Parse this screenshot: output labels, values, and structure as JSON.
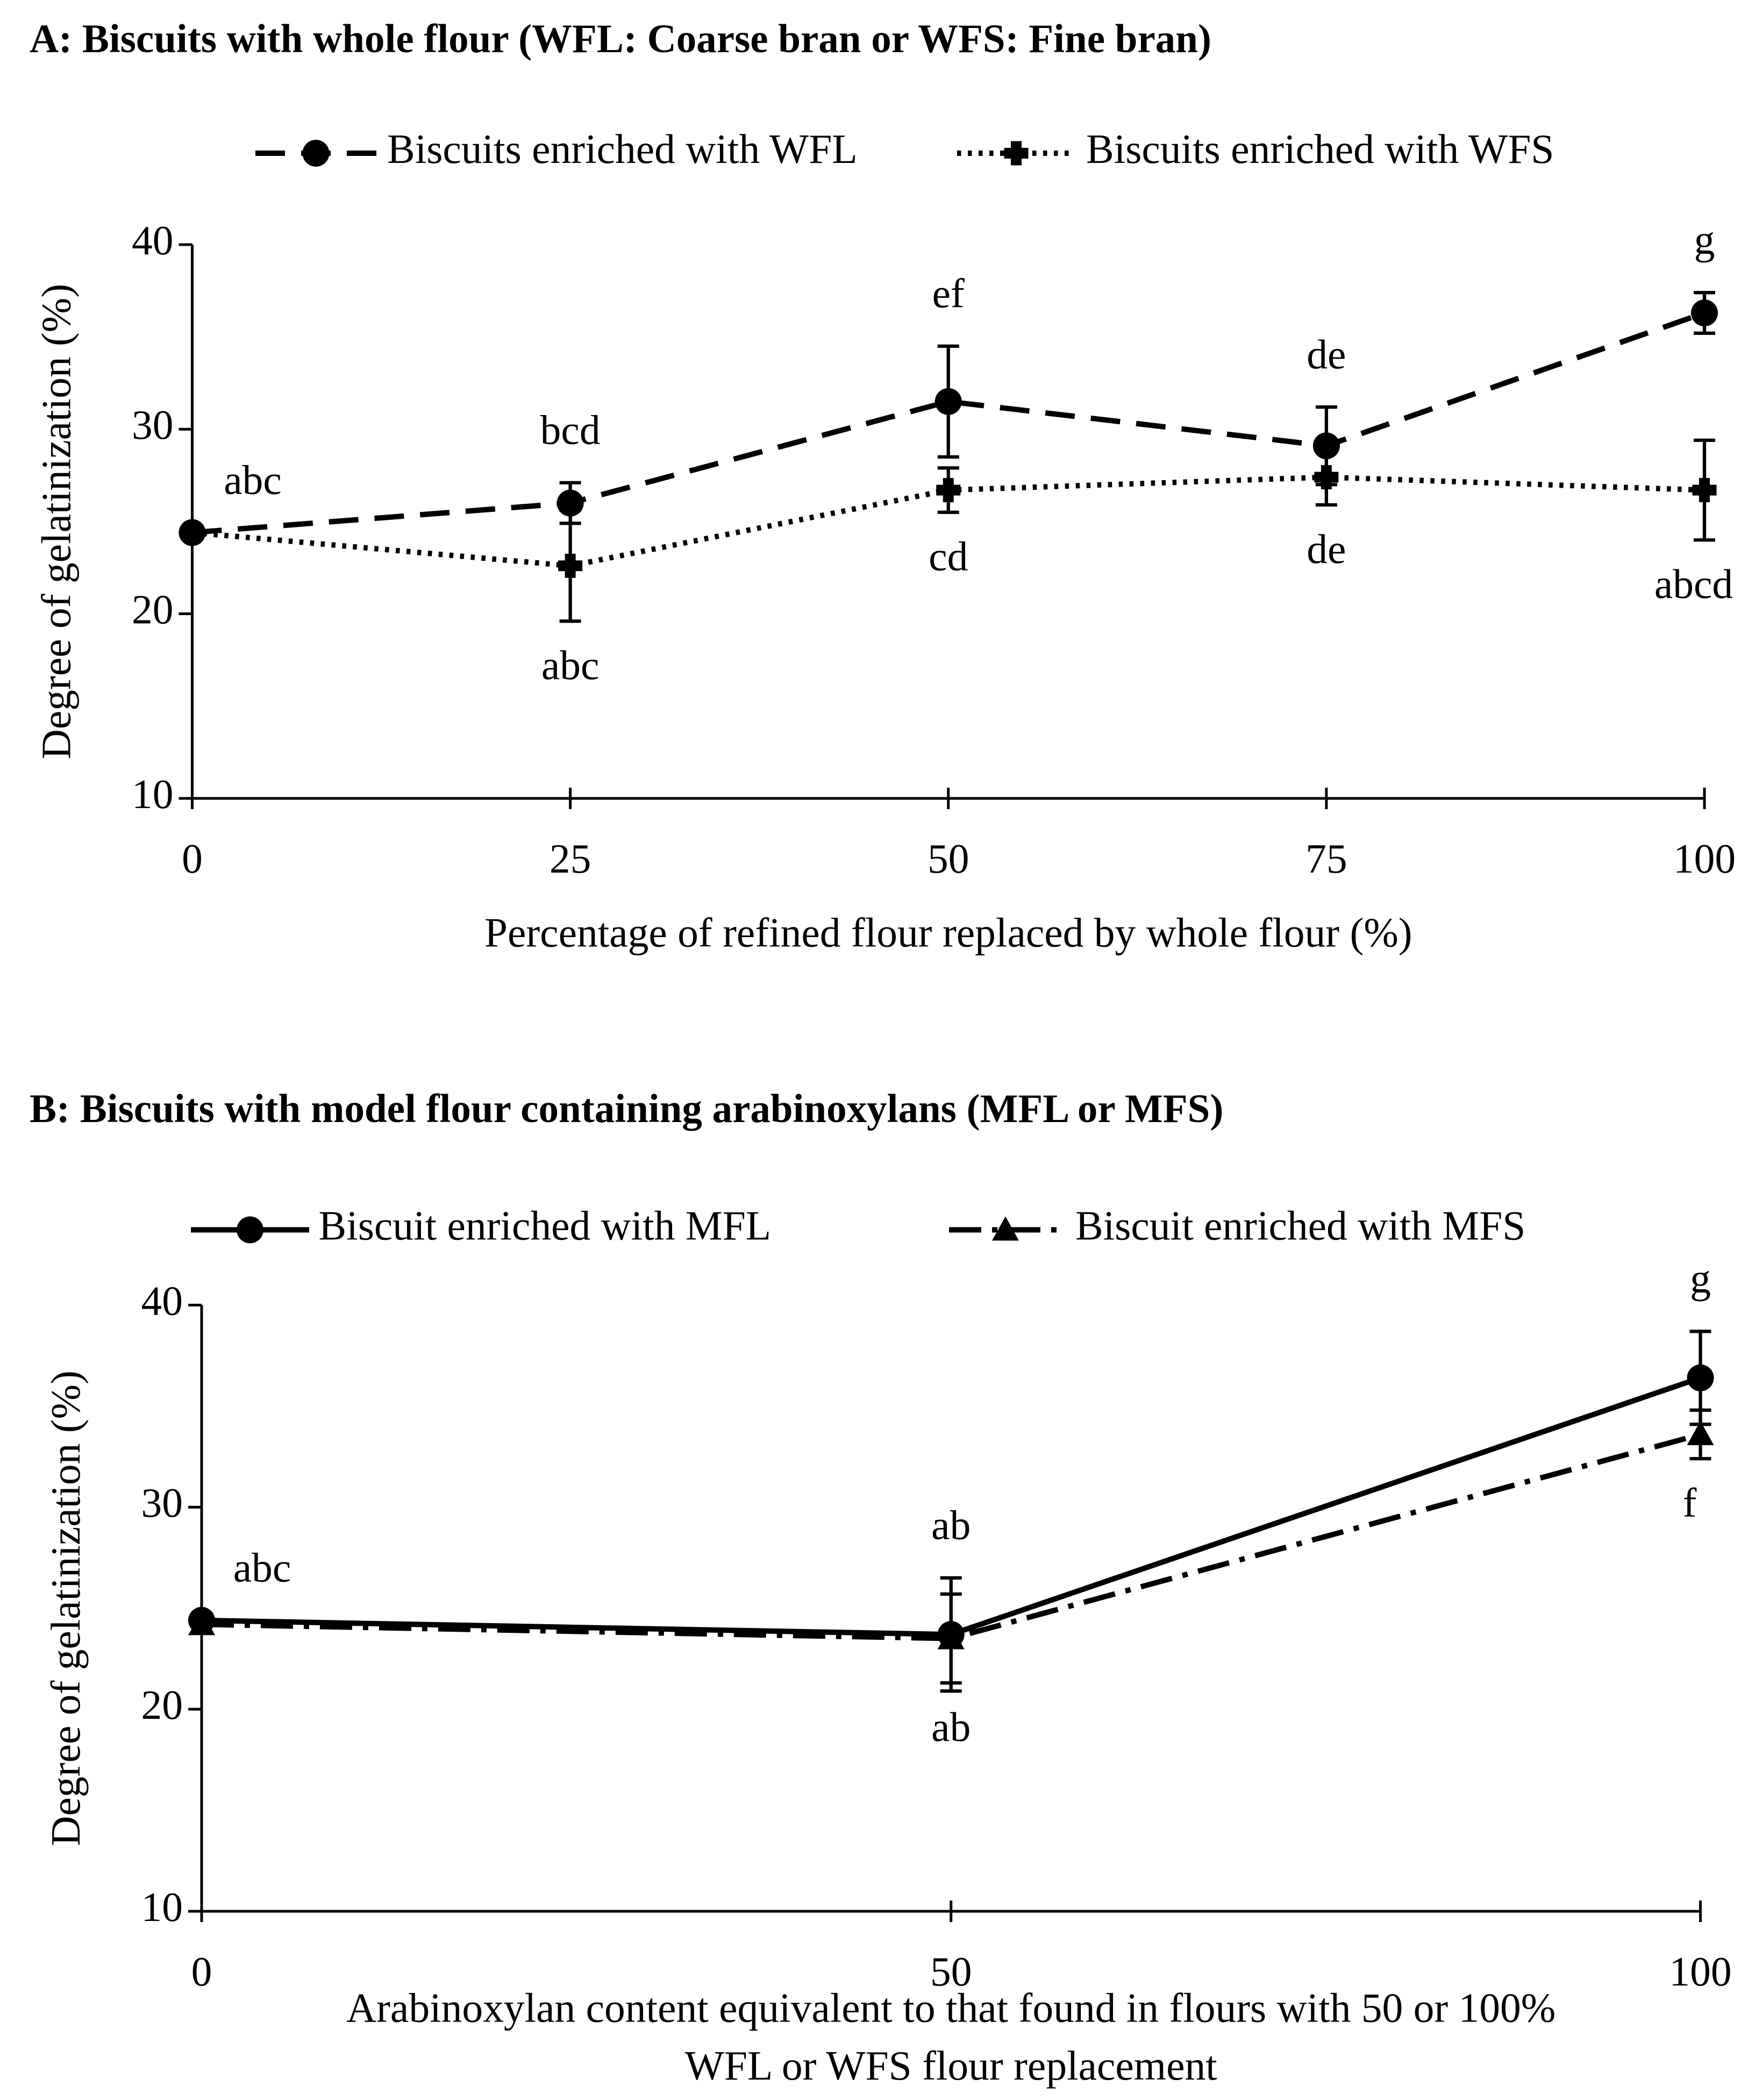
{
  "chart_data": [
    {
      "type": "line",
      "title": "A: Biscuits with whole flour (WFL: Coarse bran or WFS: Fine bran)",
      "xlabel": [
        "Percentage of refined flour replaced by whole flour (%)"
      ],
      "ylabel": "Degree of gelatinization (%)",
      "x": [
        0,
        25,
        50,
        75,
        100
      ],
      "xlim": [
        0,
        100
      ],
      "xticks": [
        0,
        25,
        50,
        75,
        100
      ],
      "ylim": [
        10,
        40
      ],
      "yticks": [
        10,
        20,
        30,
        40
      ],
      "series": [
        {
          "name": "Biscuits enriched with WFL",
          "color": "#000000",
          "dash": "dashed",
          "marker": "circle",
          "values": [
            24.4,
            26.0,
            31.5,
            29.1,
            36.3
          ],
          "errors": [
            0,
            1.1,
            3.0,
            2.1,
            1.1
          ],
          "labels": [
            "abc",
            "bcd",
            "ef",
            "de",
            "g"
          ],
          "label_side": "above"
        },
        {
          "name": "Biscuits enriched with WFS",
          "color": "#000000",
          "dash": "dotted",
          "marker": "cross",
          "values": [
            24.4,
            22.6,
            26.7,
            27.4,
            26.7
          ],
          "errors": [
            0,
            3.0,
            1.2,
            1.5,
            2.7
          ],
          "labels": [
            null,
            "abc",
            "cd",
            "de",
            "abcd"
          ],
          "label_side": "below"
        }
      ]
    },
    {
      "type": "line",
      "title": "B: Biscuits with model flour containing arabinoxylans (MFL or MFS)",
      "xlabel": [
        "Arabinoxylan content equivalent to that found in flours with 50 or 100%",
        "WFL or WFS flour replacement"
      ],
      "ylabel": "Degree of gelatinization (%)",
      "x": [
        0,
        50,
        100
      ],
      "xlim": [
        0,
        100
      ],
      "xticks": [
        0,
        50,
        100
      ],
      "ylim": [
        10,
        40
      ],
      "yticks": [
        10,
        20,
        30,
        40
      ],
      "series": [
        {
          "name": "Biscuit enriched with MFL",
          "color": "#000000",
          "dash": "solid",
          "marker": "circle",
          "values": [
            24.4,
            23.7,
            36.4
          ],
          "errors": [
            0,
            2.8,
            2.3
          ],
          "labels": [
            "abc",
            "ab",
            "g"
          ],
          "label_side": "above"
        },
        {
          "name": "Biscuit enriched with MFS",
          "color": "#000000",
          "dash": "dashdot",
          "marker": "triangle",
          "values": [
            24.2,
            23.5,
            33.6
          ],
          "errors": [
            0,
            2.2,
            1.2
          ],
          "labels": [
            null,
            "ab",
            "f"
          ],
          "label_side": "below"
        }
      ]
    }
  ]
}
